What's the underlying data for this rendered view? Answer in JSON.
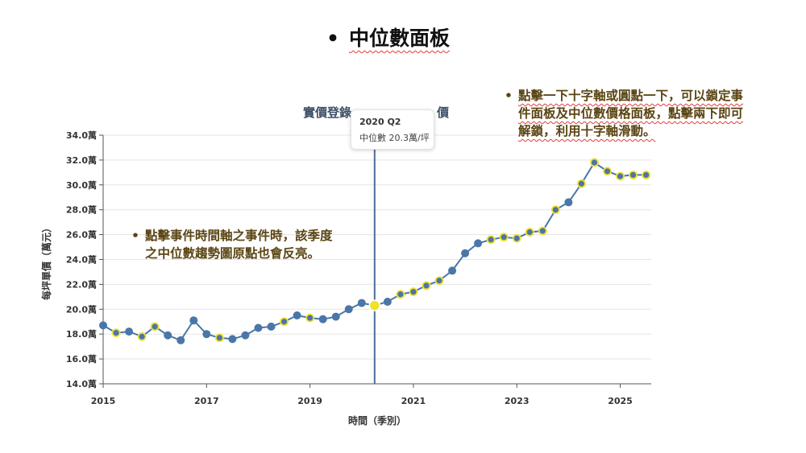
{
  "heading": {
    "bullet": "•",
    "text": "中位數面板"
  },
  "notes": {
    "right": {
      "bullet": "•",
      "lines": [
        "點擊一下十字軸或圓點一下，可以鎖定事",
        "件面板及中位數價格面板，點擊兩下即可",
        "解鎖，利用十字軸滑動。"
      ]
    },
    "left": {
      "bullet": "•",
      "lines": [
        "點擊事件時間軸之事件時，該季度",
        "之中位數趨勢圖原點也會反亮。"
      ]
    }
  },
  "tooltip": {
    "period": "2020 Q2",
    "value_text": "中位數 20.3萬/坪"
  },
  "colors": {
    "line": "#4a76a8",
    "marker": "#4a76a8",
    "highlight": "#f0e12c",
    "event_ring": "#f0e12c",
    "crosshair": "#4a6e9a"
  },
  "chart_data": {
    "type": "line",
    "title": "實價登錄",
    "title_end": "價",
    "xlabel": "時間（季別）",
    "ylabel": "每坪單價（萬元）",
    "xlim": [
      2015,
      2025.6
    ],
    "ylim": [
      14,
      34
    ],
    "y_ticks": [
      "14.0萬",
      "16.0萬",
      "18.0萬",
      "20.0萬",
      "22.0萬",
      "24.0萬",
      "26.0萬",
      "28.0萬",
      "30.0萬",
      "32.0萬",
      "34.0萬"
    ],
    "y_tick_values": [
      14,
      16,
      18,
      20,
      22,
      24,
      26,
      28,
      30,
      32,
      34
    ],
    "x_ticks": [
      "2015",
      "2017",
      "2019",
      "2021",
      "2023",
      "2025"
    ],
    "x_tick_values": [
      2015,
      2017,
      2019,
      2021,
      2023,
      2025
    ],
    "crosshair_x": 2020.25,
    "points": [
      {
        "x": 2015.0,
        "y": 18.7,
        "ring": false
      },
      {
        "x": 2015.25,
        "y": 18.1,
        "ring": true
      },
      {
        "x": 2015.5,
        "y": 18.2,
        "ring": false
      },
      {
        "x": 2015.75,
        "y": 17.8,
        "ring": true
      },
      {
        "x": 2016.0,
        "y": 18.6,
        "ring": true
      },
      {
        "x": 2016.25,
        "y": 17.9,
        "ring": false
      },
      {
        "x": 2016.5,
        "y": 17.5,
        "ring": false
      },
      {
        "x": 2016.75,
        "y": 19.1,
        "ring": false
      },
      {
        "x": 2017.0,
        "y": 18.0,
        "ring": false
      },
      {
        "x": 2017.25,
        "y": 17.7,
        "ring": true
      },
      {
        "x": 2017.5,
        "y": 17.6,
        "ring": false
      },
      {
        "x": 2017.75,
        "y": 17.9,
        "ring": false
      },
      {
        "x": 2018.0,
        "y": 18.5,
        "ring": false
      },
      {
        "x": 2018.25,
        "y": 18.6,
        "ring": false
      },
      {
        "x": 2018.5,
        "y": 19.0,
        "ring": true
      },
      {
        "x": 2018.75,
        "y": 19.5,
        "ring": false
      },
      {
        "x": 2019.0,
        "y": 19.3,
        "ring": true
      },
      {
        "x": 2019.25,
        "y": 19.2,
        "ring": false
      },
      {
        "x": 2019.5,
        "y": 19.4,
        "ring": false
      },
      {
        "x": 2019.75,
        "y": 20.0,
        "ring": false
      },
      {
        "x": 2020.0,
        "y": 20.5,
        "ring": false
      },
      {
        "x": 2020.25,
        "y": 20.3,
        "ring": false,
        "active": true
      },
      {
        "x": 2020.5,
        "y": 20.6,
        "ring": false
      },
      {
        "x": 2020.75,
        "y": 21.2,
        "ring": true
      },
      {
        "x": 2021.0,
        "y": 21.4,
        "ring": true
      },
      {
        "x": 2021.25,
        "y": 21.9,
        "ring": true
      },
      {
        "x": 2021.5,
        "y": 22.3,
        "ring": true
      },
      {
        "x": 2021.75,
        "y": 23.1,
        "ring": false
      },
      {
        "x": 2022.0,
        "y": 24.5,
        "ring": false
      },
      {
        "x": 2022.25,
        "y": 25.3,
        "ring": false
      },
      {
        "x": 2022.5,
        "y": 25.6,
        "ring": true
      },
      {
        "x": 2022.75,
        "y": 25.8,
        "ring": true
      },
      {
        "x": 2023.0,
        "y": 25.7,
        "ring": true
      },
      {
        "x": 2023.25,
        "y": 26.2,
        "ring": true
      },
      {
        "x": 2023.5,
        "y": 26.3,
        "ring": true
      },
      {
        "x": 2023.75,
        "y": 28.0,
        "ring": true
      },
      {
        "x": 2024.0,
        "y": 28.6,
        "ring": false
      },
      {
        "x": 2024.25,
        "y": 30.1,
        "ring": true
      },
      {
        "x": 2024.5,
        "y": 31.8,
        "ring": true
      },
      {
        "x": 2024.75,
        "y": 31.1,
        "ring": true
      },
      {
        "x": 2025.0,
        "y": 30.7,
        "ring": true
      },
      {
        "x": 2025.25,
        "y": 30.8,
        "ring": true
      },
      {
        "x": 2025.5,
        "y": 30.8,
        "ring": true
      }
    ]
  }
}
